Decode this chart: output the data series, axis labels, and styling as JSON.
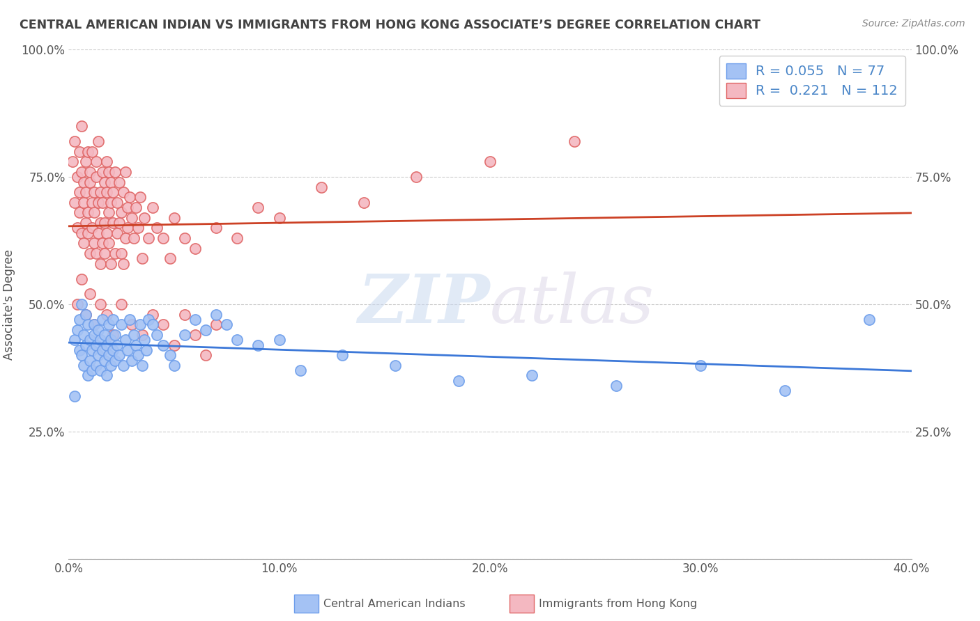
{
  "title": "CENTRAL AMERICAN INDIAN VS IMMIGRANTS FROM HONG KONG ASSOCIATE’S DEGREE CORRELATION CHART",
  "source": "Source: ZipAtlas.com",
  "ylabel": "Associate's Degree",
  "xlim": [
    0.0,
    0.4
  ],
  "ylim": [
    0.0,
    1.0
  ],
  "xticks": [
    0.0,
    0.1,
    0.2,
    0.3,
    0.4
  ],
  "xtick_labels": [
    "0.0%",
    "10.0%",
    "20.0%",
    "30.0%",
    "40.0%"
  ],
  "yticks": [
    0.0,
    0.25,
    0.5,
    0.75,
    1.0
  ],
  "ytick_labels_left": [
    "",
    "25.0%",
    "50.0%",
    "75.0%",
    "100.0%"
  ],
  "ytick_labels_right": [
    "",
    "25.0%",
    "50.0%",
    "75.0%",
    "100.0%"
  ],
  "blue_R": 0.055,
  "blue_N": 77,
  "pink_R": 0.221,
  "pink_N": 112,
  "blue_color": "#a4c2f4",
  "pink_color": "#f4b8c1",
  "blue_edge_color": "#6d9eeb",
  "pink_edge_color": "#e06666",
  "blue_line_color": "#3c78d8",
  "pink_line_color": "#cc4125",
  "blue_label": "Central American Indians",
  "pink_label": "Immigrants from Hong Kong",
  "watermark_zip": "ZIP",
  "watermark_atlas": "atlas",
  "background_color": "#ffffff",
  "grid_color": "#cccccc",
  "title_color": "#434343",
  "axis_color": "#555555",
  "legend_text_color": "#4a86c8",
  "blue_scatter_x": [
    0.003,
    0.004,
    0.005,
    0.005,
    0.006,
    0.006,
    0.007,
    0.007,
    0.008,
    0.008,
    0.009,
    0.009,
    0.01,
    0.01,
    0.011,
    0.011,
    0.012,
    0.012,
    0.013,
    0.013,
    0.014,
    0.014,
    0.015,
    0.015,
    0.016,
    0.016,
    0.017,
    0.017,
    0.018,
    0.018,
    0.019,
    0.019,
    0.02,
    0.02,
    0.021,
    0.021,
    0.022,
    0.022,
    0.023,
    0.024,
    0.025,
    0.026,
    0.027,
    0.028,
    0.029,
    0.03,
    0.031,
    0.032,
    0.033,
    0.034,
    0.035,
    0.036,
    0.037,
    0.038,
    0.04,
    0.042,
    0.045,
    0.048,
    0.05,
    0.055,
    0.06,
    0.065,
    0.07,
    0.075,
    0.08,
    0.09,
    0.1,
    0.11,
    0.13,
    0.155,
    0.185,
    0.22,
    0.26,
    0.3,
    0.34,
    0.38,
    0.003
  ],
  "blue_scatter_y": [
    0.43,
    0.45,
    0.41,
    0.47,
    0.4,
    0.5,
    0.38,
    0.44,
    0.42,
    0.48,
    0.36,
    0.46,
    0.39,
    0.43,
    0.37,
    0.41,
    0.44,
    0.46,
    0.38,
    0.42,
    0.4,
    0.45,
    0.37,
    0.43,
    0.41,
    0.47,
    0.39,
    0.44,
    0.36,
    0.42,
    0.4,
    0.46,
    0.38,
    0.43,
    0.41,
    0.47,
    0.39,
    0.44,
    0.42,
    0.4,
    0.46,
    0.38,
    0.43,
    0.41,
    0.47,
    0.39,
    0.44,
    0.42,
    0.4,
    0.46,
    0.38,
    0.43,
    0.41,
    0.47,
    0.46,
    0.44,
    0.42,
    0.4,
    0.38,
    0.44,
    0.47,
    0.45,
    0.48,
    0.46,
    0.43,
    0.42,
    0.43,
    0.37,
    0.4,
    0.38,
    0.35,
    0.36,
    0.34,
    0.38,
    0.33,
    0.47,
    0.32
  ],
  "pink_scatter_x": [
    0.002,
    0.003,
    0.003,
    0.004,
    0.004,
    0.005,
    0.005,
    0.005,
    0.006,
    0.006,
    0.006,
    0.007,
    0.007,
    0.007,
    0.008,
    0.008,
    0.008,
    0.009,
    0.009,
    0.009,
    0.01,
    0.01,
    0.01,
    0.011,
    0.011,
    0.011,
    0.012,
    0.012,
    0.012,
    0.013,
    0.013,
    0.013,
    0.014,
    0.014,
    0.014,
    0.015,
    0.015,
    0.015,
    0.016,
    0.016,
    0.016,
    0.017,
    0.017,
    0.017,
    0.018,
    0.018,
    0.018,
    0.019,
    0.019,
    0.019,
    0.02,
    0.02,
    0.02,
    0.021,
    0.021,
    0.022,
    0.022,
    0.023,
    0.023,
    0.024,
    0.024,
    0.025,
    0.025,
    0.026,
    0.026,
    0.027,
    0.027,
    0.028,
    0.028,
    0.029,
    0.03,
    0.031,
    0.032,
    0.033,
    0.034,
    0.035,
    0.036,
    0.038,
    0.04,
    0.042,
    0.045,
    0.048,
    0.05,
    0.055,
    0.06,
    0.07,
    0.08,
    0.09,
    0.1,
    0.12,
    0.14,
    0.165,
    0.2,
    0.24,
    0.004,
    0.006,
    0.008,
    0.01,
    0.012,
    0.015,
    0.018,
    0.021,
    0.025,
    0.03,
    0.035,
    0.04,
    0.045,
    0.05,
    0.055,
    0.06,
    0.065,
    0.07
  ],
  "pink_scatter_y": [
    0.78,
    0.82,
    0.7,
    0.75,
    0.65,
    0.8,
    0.72,
    0.68,
    0.76,
    0.64,
    0.85,
    0.7,
    0.74,
    0.62,
    0.78,
    0.66,
    0.72,
    0.8,
    0.64,
    0.68,
    0.74,
    0.6,
    0.76,
    0.7,
    0.65,
    0.8,
    0.62,
    0.72,
    0.68,
    0.75,
    0.6,
    0.78,
    0.64,
    0.7,
    0.82,
    0.66,
    0.72,
    0.58,
    0.76,
    0.62,
    0.7,
    0.66,
    0.74,
    0.6,
    0.78,
    0.64,
    0.72,
    0.68,
    0.76,
    0.62,
    0.7,
    0.58,
    0.74,
    0.66,
    0.72,
    0.6,
    0.76,
    0.64,
    0.7,
    0.66,
    0.74,
    0.6,
    0.68,
    0.72,
    0.58,
    0.76,
    0.63,
    0.69,
    0.65,
    0.71,
    0.67,
    0.63,
    0.69,
    0.65,
    0.71,
    0.59,
    0.67,
    0.63,
    0.69,
    0.65,
    0.63,
    0.59,
    0.67,
    0.63,
    0.61,
    0.65,
    0.63,
    0.69,
    0.67,
    0.73,
    0.7,
    0.75,
    0.78,
    0.82,
    0.5,
    0.55,
    0.48,
    0.52,
    0.46,
    0.5,
    0.48,
    0.44,
    0.5,
    0.46,
    0.44,
    0.48,
    0.46,
    0.42,
    0.48,
    0.44,
    0.4,
    0.46
  ]
}
